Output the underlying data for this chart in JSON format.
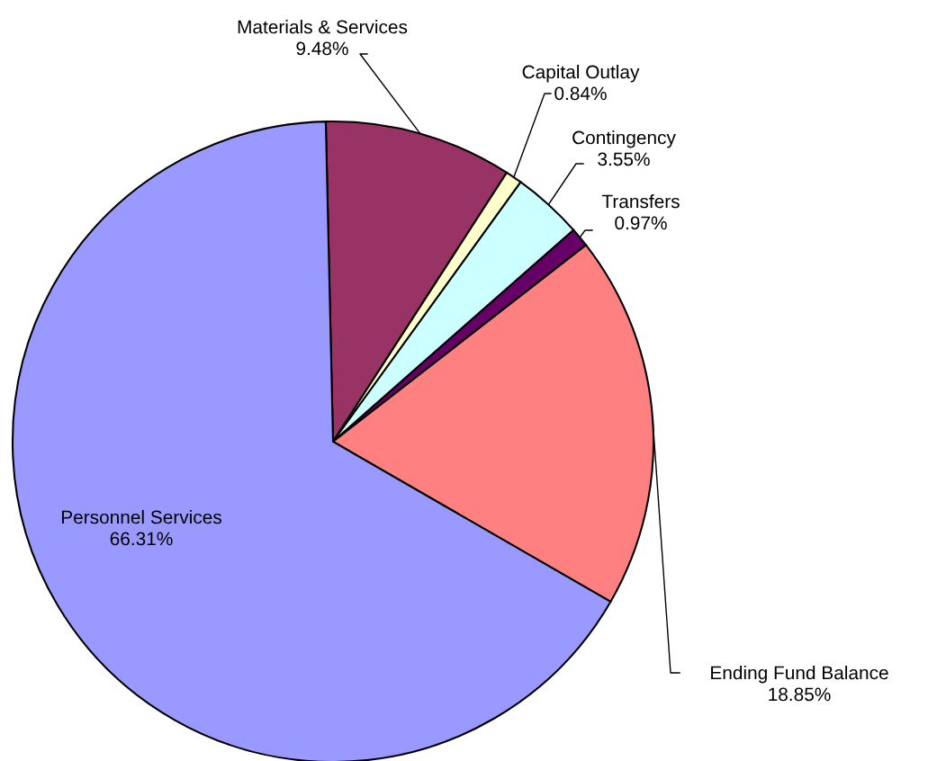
{
  "chart_data": {
    "type": "pie",
    "categories": [
      "Materials & Services",
      "Capital Outlay",
      "Contingency",
      "Transfers",
      "Ending Fund Balance",
      "Personnel Services"
    ],
    "values": [
      9.48,
      0.84,
      3.55,
      0.97,
      18.85,
      66.31
    ],
    "colors": [
      "#993366",
      "#ffffcc",
      "#ccffff",
      "#660066",
      "#ff8080",
      "#9999ff"
    ],
    "value_labels": [
      "9.48%",
      "0.84%",
      "3.55%",
      "0.97%",
      "18.85%",
      "66.31%"
    ]
  }
}
